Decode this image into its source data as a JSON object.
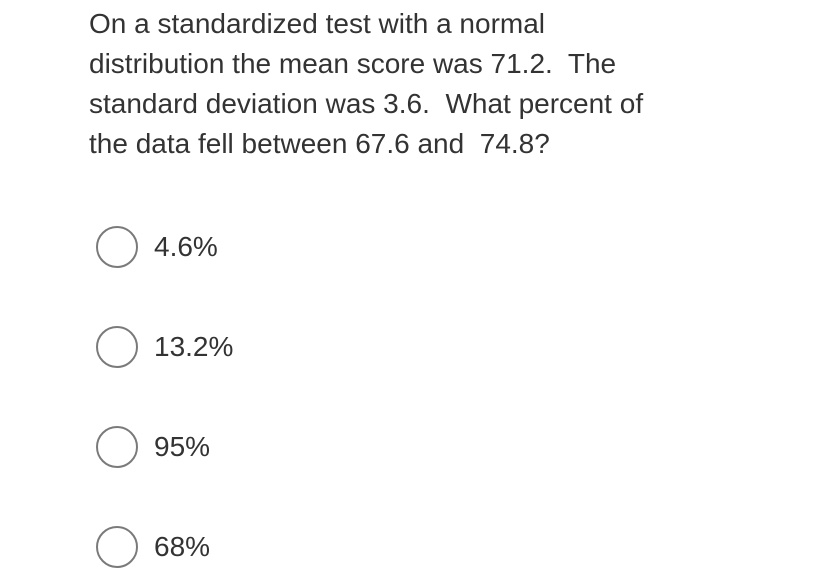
{
  "question": {
    "lines": [
      "On a standardized test with a normal",
      "distribution the mean score was 71.2.  The",
      "standard deviation was 3.6.  What percent of",
      "the data fell between 67.6 and  74.8?"
    ]
  },
  "options": [
    "4.6%",
    "13.2%",
    "95%",
    "68%"
  ]
}
